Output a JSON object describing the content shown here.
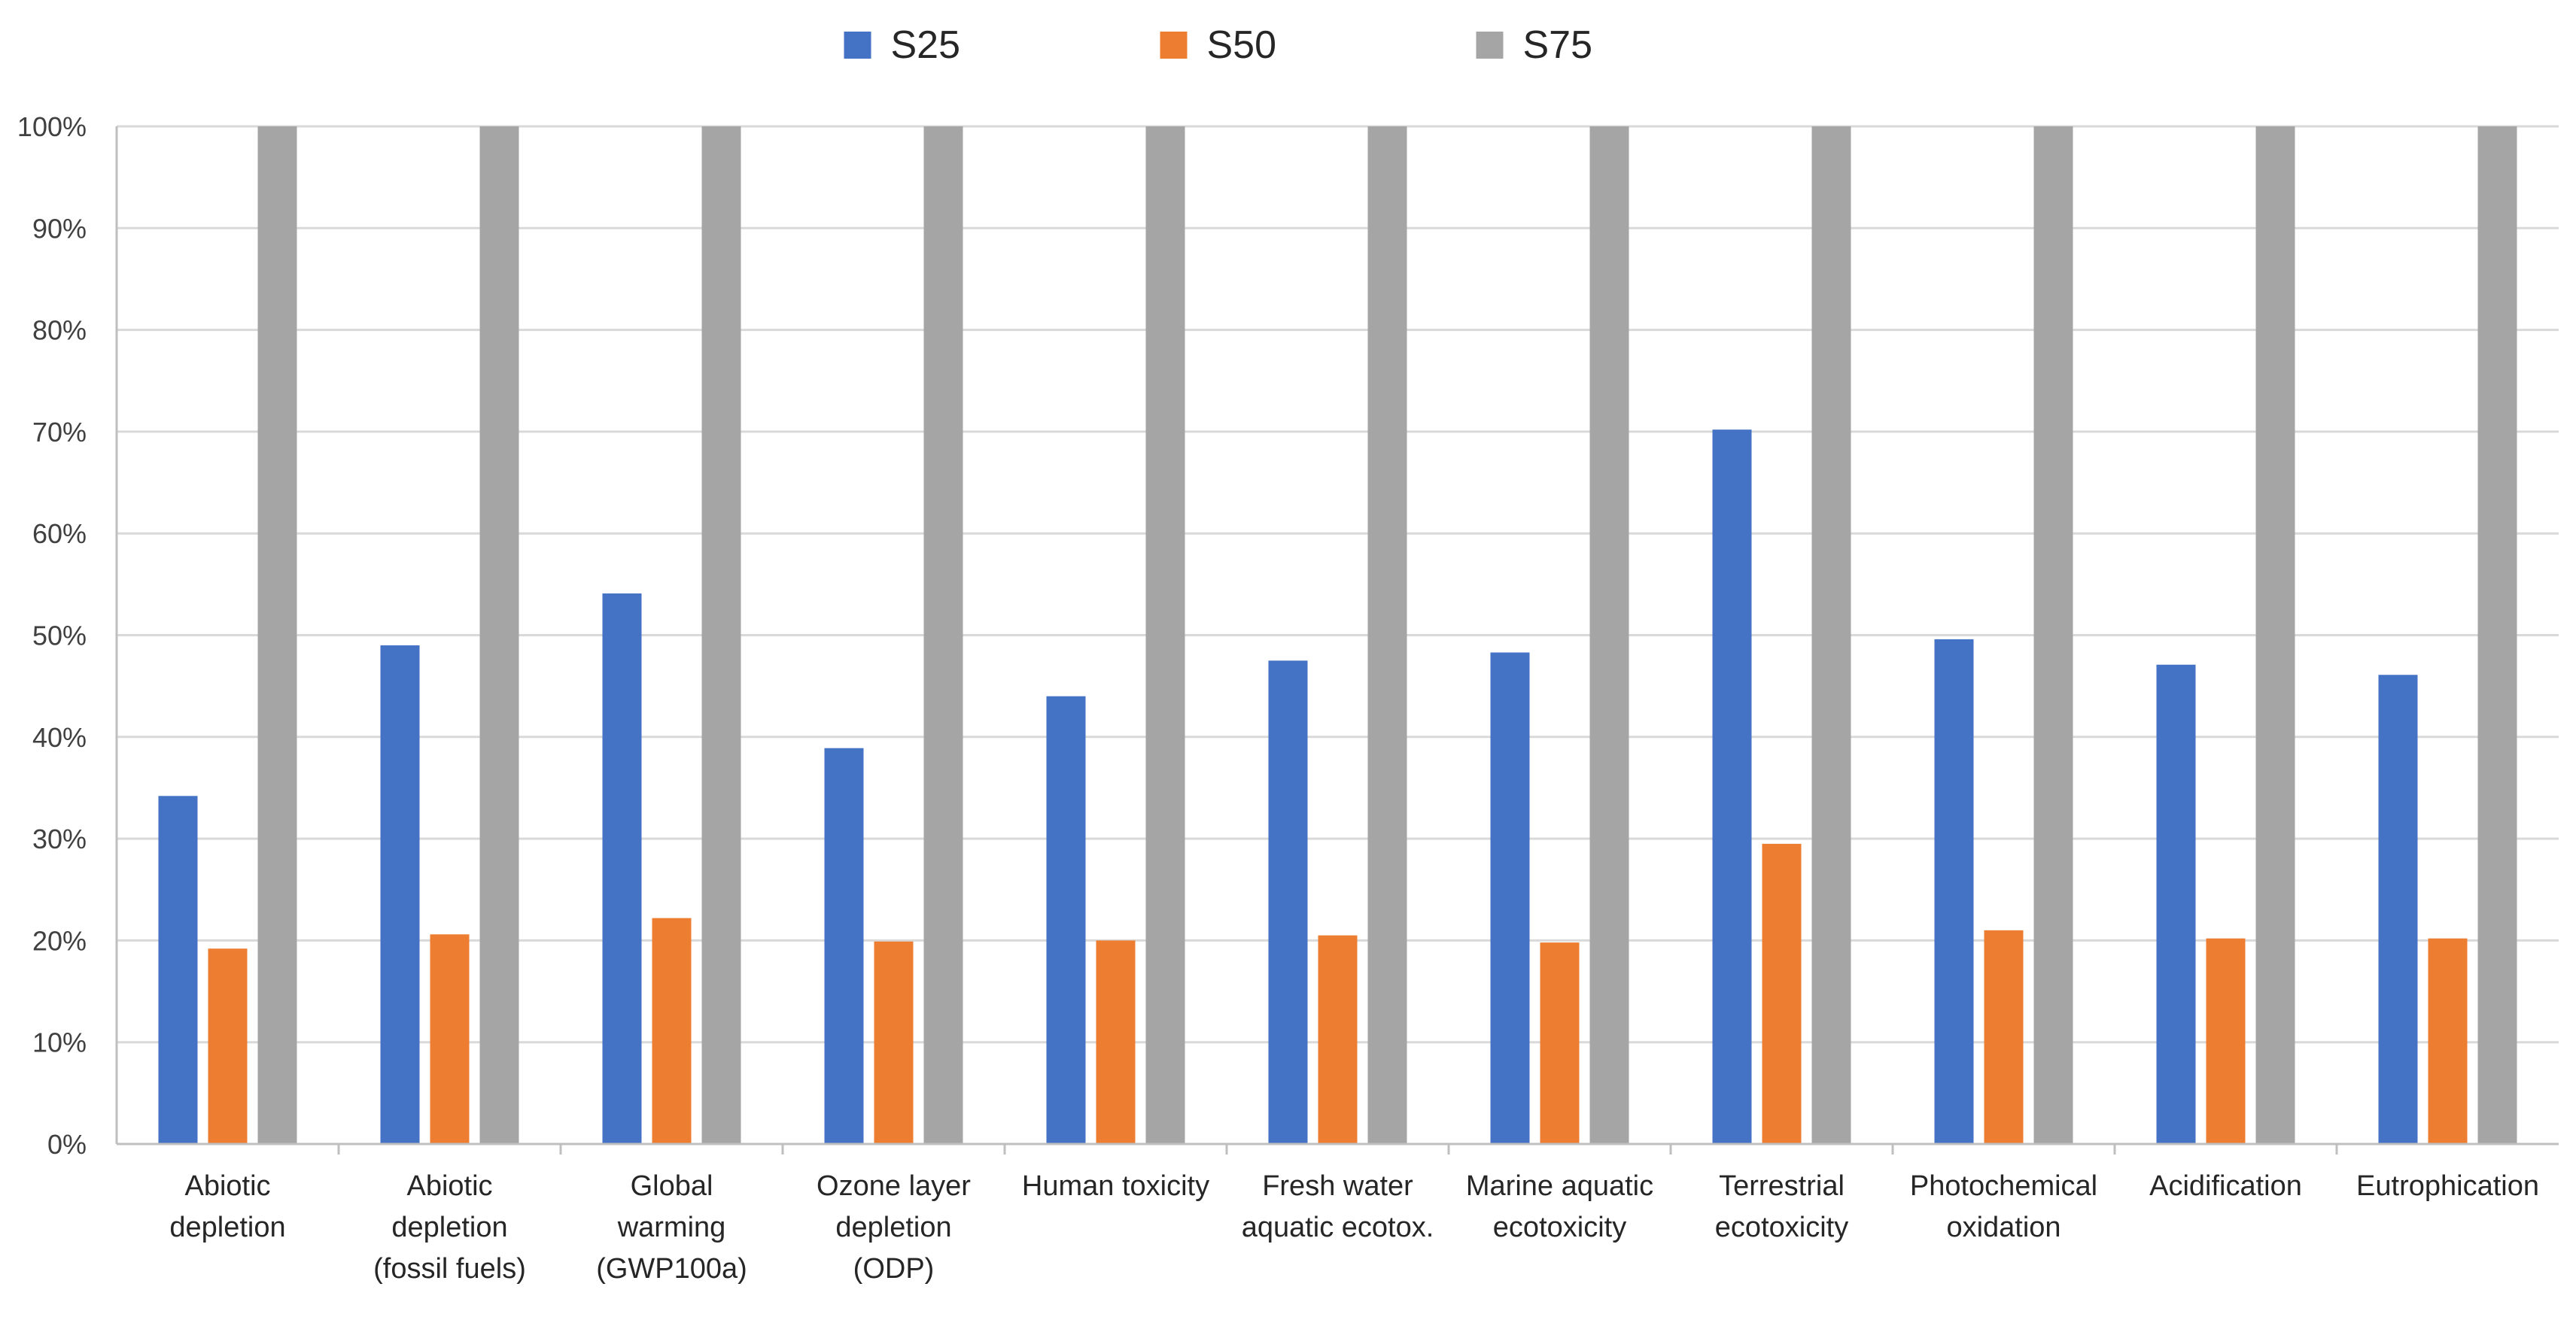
{
  "chart_data": {
    "type": "bar",
    "title": "",
    "xlabel": "",
    "ylabel": "",
    "ylim": [
      0,
      100
    ],
    "y_ticks": [
      "0%",
      "10%",
      "20%",
      "30%",
      "40%",
      "50%",
      "60%",
      "70%",
      "80%",
      "90%",
      "100%"
    ],
    "y_tick_values": [
      0,
      10,
      20,
      30,
      40,
      50,
      60,
      70,
      80,
      90,
      100
    ],
    "grid": "horizontal",
    "legend_position": "top-center",
    "categories": [
      [
        "Abiotic",
        "depletion"
      ],
      [
        "Abiotic",
        "depletion",
        "(fossil fuels)"
      ],
      [
        "Global",
        "warming",
        "(GWP100a)"
      ],
      [
        "Ozone layer",
        "depletion",
        "(ODP)"
      ],
      [
        "Human toxicity"
      ],
      [
        "Fresh water",
        "aquatic ecotox."
      ],
      [
        "Marine aquatic",
        "ecotoxicity"
      ],
      [
        "Terrestrial",
        "ecotoxicity"
      ],
      [
        "Photochemical",
        "oxidation"
      ],
      [
        "Acidification"
      ],
      [
        "Eutrophication"
      ]
    ],
    "series": [
      {
        "name": "S25",
        "color": "#4472C4",
        "values": [
          34.2,
          49,
          54.1,
          38.9,
          44,
          47.5,
          48.3,
          70.2,
          49.6,
          47.1,
          46.1
        ]
      },
      {
        "name": "S50",
        "color": "#ED7D31",
        "values": [
          19.2,
          20.6,
          22.2,
          19.9,
          20,
          20.5,
          19.8,
          29.5,
          21,
          20.2,
          20.2
        ]
      },
      {
        "name": "S75",
        "color": "#A5A5A5",
        "values": [
          100,
          100,
          100,
          100,
          100,
          100,
          100,
          100,
          100,
          100,
          100
        ]
      }
    ]
  }
}
